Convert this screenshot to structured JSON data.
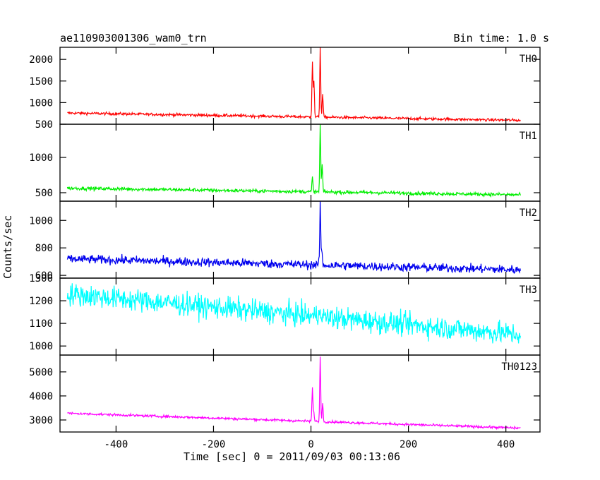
{
  "header": {
    "title": "ae110903001306_wam0_trn",
    "bin_time": "Bin time: 1.0 s"
  },
  "axes": {
    "xlabel": "Time [sec] 0 = 2011/09/03 00:13:06",
    "ylabel": "Counts/sec"
  },
  "chart_data": {
    "type": "line",
    "title": "ae110903001306_wam0_trn",
    "xlabel": "Time [sec] 0 = 2011/09/03 00:13:06",
    "ylabel": "Counts/sec",
    "xlim": [
      -515,
      470
    ],
    "x_range": [
      -500,
      430
    ],
    "bin_time_s": 1.0,
    "x_ticks": [
      -400,
      -200,
      0,
      200,
      400
    ],
    "grid": false,
    "panels": [
      {
        "name": "TH0",
        "color": "#ff0000",
        "ylim": [
          500,
          2280
        ],
        "yticks": [
          500,
          1000,
          1500,
          2000
        ],
        "start": 760,
        "end": 590,
        "noise": 45,
        "peaks": [
          {
            "t": 3,
            "v": 1950
          },
          {
            "t": 6,
            "v": 1500
          },
          {
            "t": 19,
            "v": 2280
          },
          {
            "t": 24,
            "v": 1200
          }
        ]
      },
      {
        "name": "TH1",
        "color": "#00ee00",
        "ylim": [
          380,
          1470
        ],
        "yticks": [
          500,
          1000
        ],
        "start": 565,
        "end": 470,
        "noise": 35,
        "peaks": [
          {
            "t": 3,
            "v": 720
          },
          {
            "t": 19,
            "v": 1470
          },
          {
            "t": 23,
            "v": 900
          }
        ]
      },
      {
        "name": "TH2",
        "color": "#0000ee",
        "ylim": [
          580,
          1140
        ],
        "yticks": [
          600,
          800,
          1000
        ],
        "start": 720,
        "end": 640,
        "noise": 45,
        "peaks": [
          {
            "t": 19,
            "v": 1140
          },
          {
            "t": 22,
            "v": 780
          }
        ]
      },
      {
        "name": "TH3",
        "color": "#00ffff",
        "ylim": [
          960,
          1300
        ],
        "yticks": [
          1000,
          1100,
          1200,
          1300
        ],
        "start": 1230,
        "end": 1050,
        "noise": 70,
        "peaks": [
          {
            "t": 19,
            "v": 1210
          }
        ]
      },
      {
        "name": "TH0123",
        "color": "#ff00ff",
        "ylim": [
          2500,
          5700
        ],
        "yticks": [
          3000,
          4000,
          5000
        ],
        "start": 3280,
        "end": 2660,
        "noise": 70,
        "peaks": [
          {
            "t": 3,
            "v": 4350
          },
          {
            "t": 6,
            "v": 3300
          },
          {
            "t": 19,
            "v": 5650
          },
          {
            "t": 24,
            "v": 3700
          }
        ]
      }
    ]
  }
}
